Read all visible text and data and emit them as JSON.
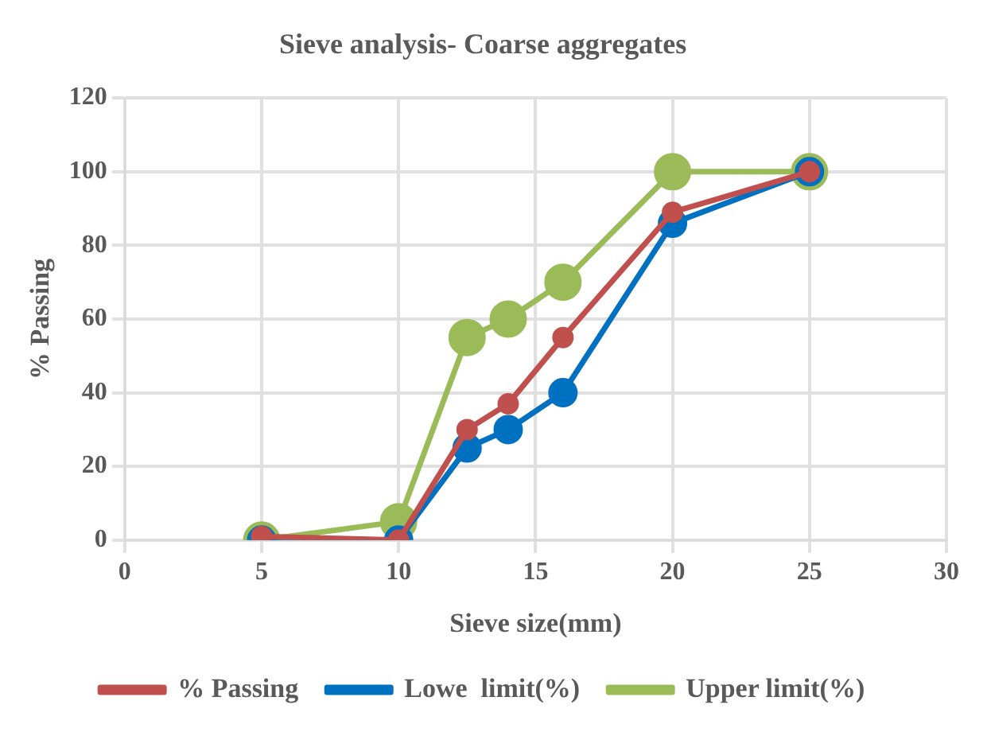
{
  "chart_data": {
    "type": "line",
    "title": "Sieve analysis- Coarse aggregates",
    "xlabel": "Sieve size(mm)",
    "ylabel": "% Passing",
    "x": [
      5,
      10,
      12.5,
      14,
      16,
      20,
      25
    ],
    "series": [
      {
        "name": "% Passing",
        "color": "#c0504d",
        "values": [
          1,
          0,
          30,
          37,
          55,
          89,
          100
        ]
      },
      {
        "name": "Lowe  limit(%)",
        "color": "#0070c0",
        "values": [
          0,
          0,
          25,
          30,
          40,
          86,
          100
        ]
      },
      {
        "name": "Upper limit(%)",
        "color": "#9bbb59",
        "values": [
          0,
          5,
          55,
          60,
          70,
          100,
          100
        ]
      }
    ],
    "xlim": [
      0,
      30
    ],
    "xticks": [
      0,
      5,
      10,
      15,
      20,
      25,
      30
    ],
    "ylim": [
      0,
      120
    ],
    "yticks": [
      0,
      20,
      40,
      60,
      80,
      100,
      120
    ],
    "grid": true,
    "legend": "bottom",
    "marker": "circle",
    "line_style": "solid"
  }
}
